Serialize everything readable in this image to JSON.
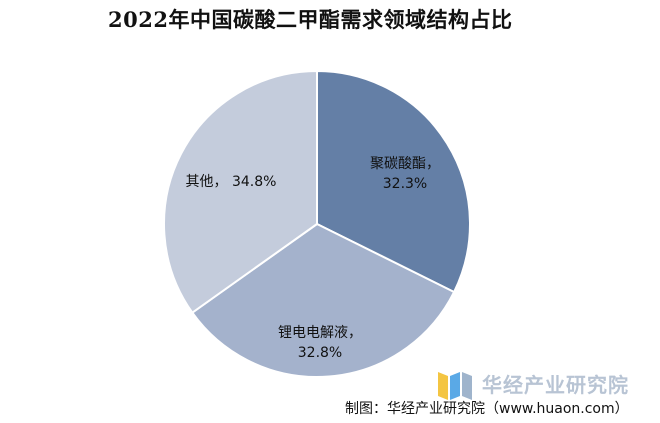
{
  "chart_data": {
    "type": "pie",
    "title": "2022年中国碳酸二甲酯需求领域结构占比",
    "slices": [
      {
        "label": "聚碳酸酯，",
        "value_label": "32.3%",
        "value": 32.3,
        "color": "#647fa6"
      },
      {
        "label": "锂电电解液，",
        "value_label": "32.8%",
        "value": 32.8,
        "color": "#a4b2cc"
      },
      {
        "label": "其他，",
        "value_label": "34.8%",
        "value": 34.8,
        "color": "#c4ccdc"
      }
    ],
    "legend": "none"
  },
  "watermark": {
    "text": "华经产业研究院",
    "icon": "bar-logo-icon"
  },
  "source": "制图：华经产业研究院（www.huaon.com）"
}
